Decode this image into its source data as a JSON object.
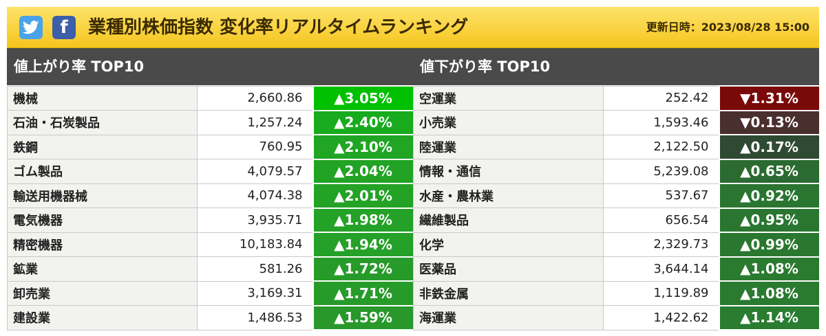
{
  "header": {
    "title": "業種別株価指数 変化率リアルタイムランキング",
    "updated_label": "更新日時：2023/08/28 15:00"
  },
  "icons": {
    "twitter": "twitter-icon",
    "facebook": "facebook-icon",
    "facebook_glyph": "f"
  },
  "gainers": {
    "heading": "値上がり率 TOP10",
    "rows": [
      {
        "name": "機械",
        "value": "2,660.86",
        "change": "▲3.05%",
        "color": "#00c000"
      },
      {
        "name": "石油・石炭製品",
        "value": "1,257.24",
        "change": "▲2.40%",
        "color": "#17ab1d"
      },
      {
        "name": "鉄鋼",
        "value": "760.95",
        "change": "▲2.10%",
        "color": "#20a524"
      },
      {
        "name": "ゴム製品",
        "value": "4,079.57",
        "change": "▲2.04%",
        "color": "#22a325"
      },
      {
        "name": "輸送用機器械",
        "value": "4,074.38",
        "change": "▲2.01%",
        "color": "#23a226"
      },
      {
        "name": "電気機器",
        "value": "3,935.71",
        "change": "▲1.98%",
        "color": "#24a127"
      },
      {
        "name": "精密機器",
        "value": "10,183.84",
        "change": "▲1.94%",
        "color": "#25a028"
      },
      {
        "name": "鉱業",
        "value": "581.26",
        "change": "▲1.72%",
        "color": "#279b2a"
      },
      {
        "name": "卸売業",
        "value": "3,169.31",
        "change": "▲1.71%",
        "color": "#279b2a"
      },
      {
        "name": "建設業",
        "value": "1,486.53",
        "change": "▲1.59%",
        "color": "#29982b"
      }
    ]
  },
  "losers": {
    "heading": "値下がり率 TOP10",
    "rows": [
      {
        "name": "空運業",
        "value": "252.42",
        "change": "▼1.31%",
        "color": "#7a0a0a"
      },
      {
        "name": "小売業",
        "value": "1,593.46",
        "change": "▼0.13%",
        "color": "#4a2f2f"
      },
      {
        "name": "陸運業",
        "value": "2,122.50",
        "change": "▲0.17%",
        "color": "#2f4a32"
      },
      {
        "name": "情報・通信",
        "value": "5,239.08",
        "change": "▲0.65%",
        "color": "#2b6a30"
      },
      {
        "name": "水産・農林業",
        "value": "537.67",
        "change": "▲0.92%",
        "color": "#2a7530"
      },
      {
        "name": "繊維製品",
        "value": "656.54",
        "change": "▲0.95%",
        "color": "#2a7630"
      },
      {
        "name": "化学",
        "value": "2,329.73",
        "change": "▲0.99%",
        "color": "#2a7730"
      },
      {
        "name": "医薬品",
        "value": "3,644.14",
        "change": "▲1.08%",
        "color": "#2a7a30"
      },
      {
        "name": "非鉄金属",
        "value": "1,119.89",
        "change": "▲1.08%",
        "color": "#2a7a30"
      },
      {
        "name": "海運業",
        "value": "1,422.62",
        "change": "▲1.14%",
        "color": "#297c30"
      }
    ]
  }
}
